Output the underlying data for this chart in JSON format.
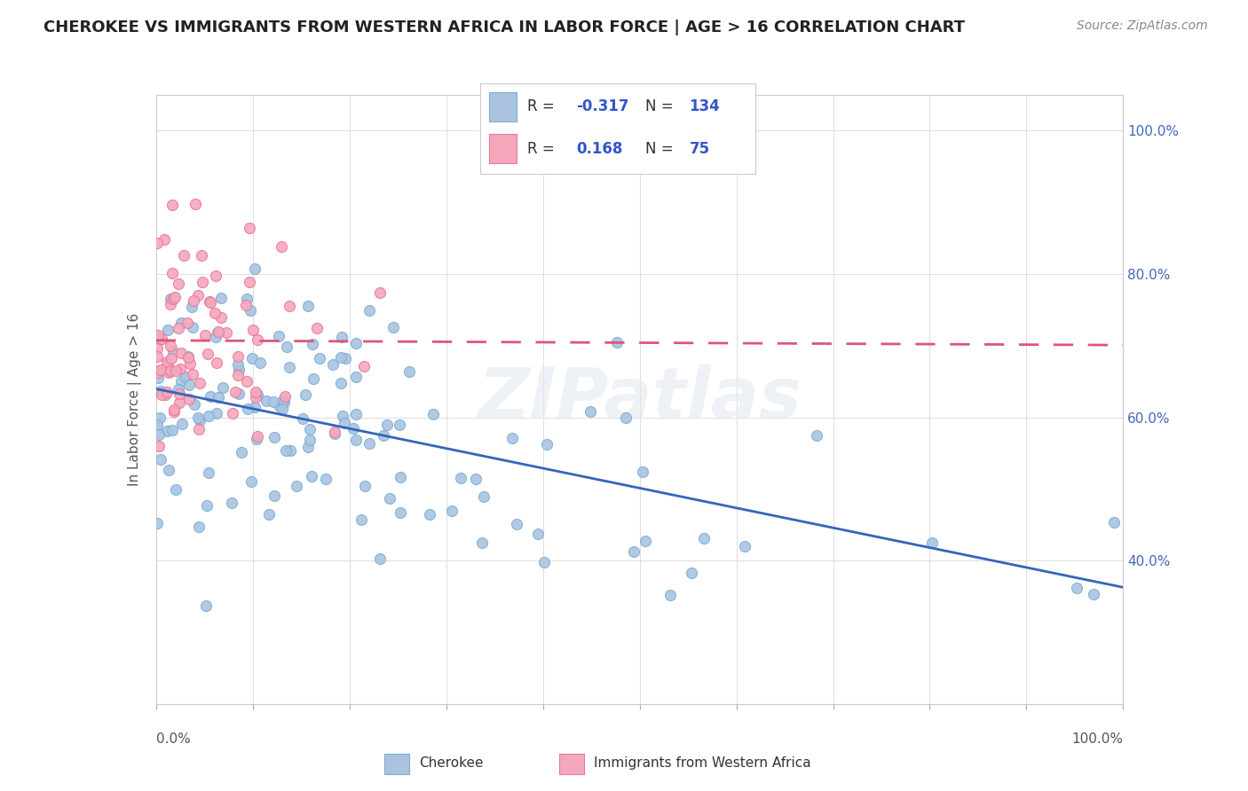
{
  "title": "CHEROKEE VS IMMIGRANTS FROM WESTERN AFRICA IN LABOR FORCE | AGE > 16 CORRELATION CHART",
  "source": "Source: ZipAtlas.com",
  "ylabel": "In Labor Force | Age > 16",
  "cherokee_color": "#aac4e0",
  "cherokee_edge": "#7bafd4",
  "africa_color": "#f5a8bc",
  "africa_edge": "#e8789a",
  "trendline_cherokee": "#3366bb",
  "trendline_africa": "#dd5577",
  "R_cherokee": -0.317,
  "N_cherokee": 134,
  "R_africa": 0.168,
  "N_africa": 75,
  "background_color": "#ffffff",
  "grid_color": "#dddddd",
  "watermark": "ZIPatlas",
  "legend_value_color": "#3355cc",
  "legend_label_color": "#333333"
}
